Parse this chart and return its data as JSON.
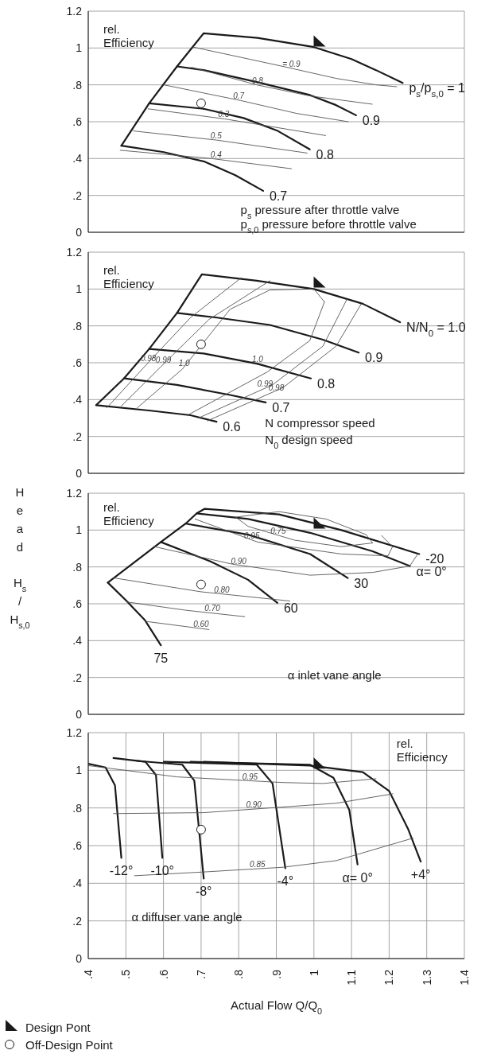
{
  "chart_data": [
    {
      "type": "line",
      "xlim": [
        0.4,
        1.4
      ],
      "ylim": [
        0,
        1.2
      ],
      "xticks": [
        0.4,
        0.5,
        0.6,
        0.7,
        0.8,
        0.9,
        1,
        1.1,
        1.2,
        1.3,
        1.4
      ],
      "yticks": [
        0,
        {
          "value": 0.2,
          "label": ".2"
        },
        {
          "value": 0.4,
          "label": ".4"
        },
        {
          "value": 0.6,
          "label": ".6"
        },
        {
          "value": 0.8,
          "label": ".8"
        },
        1,
        1.2
      ],
      "tick_labels": "y",
      "grid": true,
      "series": [
        {
          "name": "p$_{s}$/p$_{s,0}$ = 1",
          "color": "#1a1a1a",
          "x": [
            0.488,
            0.562,
            0.636,
            0.707,
            0.85,
            1.0,
            1.1,
            1.165,
            1.236
          ],
          "values": [
            0.47,
            0.7,
            0.9,
            1.08,
            1.055,
            1.005,
            0.94,
            0.88,
            0.81
          ]
        },
        {
          "name": "0.9",
          "color": "#1a1a1a",
          "x": [
            0.636,
            0.707,
            0.848,
            0.989,
            1.059,
            1.112
          ],
          "values": [
            0.9,
            0.88,
            0.815,
            0.745,
            0.69,
            0.635
          ]
        },
        {
          "name": "0.8",
          "color": "#1a1a1a",
          "x": [
            0.562,
            0.707,
            0.813,
            0.904,
            0.989
          ],
          "values": [
            0.7,
            0.67,
            0.62,
            0.55,
            0.45
          ]
        },
        {
          "name": "0.7",
          "color": "#1a1a1a",
          "x": [
            0.488,
            0.601,
            0.707,
            0.791,
            0.865
          ],
          "values": [
            0.47,
            0.435,
            0.385,
            0.31,
            0.225
          ]
        },
        {
          "color": "#555555",
          "x": [
            0.679,
            0.918,
            1.059,
            1.165,
            1.22
          ],
          "values": [
            1.005,
            0.9,
            0.835,
            0.8,
            0.79
          ]
        },
        {
          "color": "#555555",
          "x": [
            0.675,
            0.848,
            0.989,
            1.155
          ],
          "values": [
            0.895,
            0.8,
            0.74,
            0.695
          ]
        },
        {
          "color": "#555555",
          "x": [
            0.601,
            0.805,
            0.954,
            1.091
          ],
          "values": [
            0.8,
            0.715,
            0.645,
            0.6
          ]
        },
        {
          "color": "#555555",
          "x": [
            0.559,
            0.763,
            1.031
          ],
          "values": [
            0.67,
            0.615,
            0.525
          ]
        },
        {
          "color": "#555555",
          "x": [
            0.52,
            0.742,
            0.982
          ],
          "values": [
            0.55,
            0.5,
            0.43
          ]
        },
        {
          "color": "#555555",
          "x": [
            0.485,
            0.728,
            0.94
          ],
          "values": [
            0.445,
            0.4,
            0.345
          ]
        },
        {
          "type": "scatter",
          "marker": "triangle",
          "color": "#1a1a1a",
          "x": [
            1.01
          ],
          "values": [
            1.03
          ]
        },
        {
          "type": "scatter",
          "marker": "circle",
          "color": "#1a1a1a",
          "x": [
            0.7
          ],
          "values": [
            0.7
          ]
        }
      ],
      "annotations": [
        "rel.\nEfficiency",
        "p$_{s}$ pressure after throttle valve",
        "p$_{s,0}$ pressure before throttle valve",
        {
          "text": "= 0.9",
          "x": 0.94,
          "y": 0.89
        },
        {
          "text": "0.8",
          "x": 0.85,
          "y": 0.8
        },
        {
          "text": "0.7",
          "x": 0.8,
          "y": 0.717
        },
        {
          "text": "0.3",
          "x": 0.76,
          "y": 0.616
        },
        {
          "text": "0.5",
          "x": 0.74,
          "y": 0.5
        },
        {
          "text": "0.4",
          "x": 0.74,
          "y": 0.398
        }
      ]
    },
    {
      "type": "line",
      "xlim": [
        0.4,
        1.4
      ],
      "ylim": [
        0,
        1.2
      ],
      "xticks": [
        0.4,
        0.5,
        0.6,
        0.7,
        0.8,
        0.9,
        1,
        1.1,
        1.2,
        1.3,
        1.4
      ],
      "yticks": [
        0,
        {
          "value": 0.2,
          "label": ".2"
        },
        {
          "value": 0.4,
          "label": ".4"
        },
        {
          "value": 0.6,
          "label": ".6"
        },
        {
          "value": 0.8,
          "label": ".8"
        },
        1,
        1.2
      ],
      "tick_labels": "y",
      "grid": true,
      "series": [
        {
          "name": "N/N$_{0}$ = 1.0",
          "color": "#1a1a1a",
          "x": [
            0.421,
            0.495,
            0.562,
            0.636,
            0.702,
            0.848,
            1.0,
            1.13,
            1.229
          ],
          "values": [
            0.37,
            0.515,
            0.675,
            0.87,
            1.08,
            1.045,
            1.0,
            0.92,
            0.82
          ]
        },
        {
          "name": "0.9",
          "color": "#1a1a1a",
          "x": [
            0.636,
            0.742,
            0.883,
            1.024,
            1.119
          ],
          "values": [
            0.87,
            0.845,
            0.805,
            0.725,
            0.655
          ]
        },
        {
          "name": "0.8",
          "color": "#1a1a1a",
          "x": [
            0.562,
            0.707,
            0.848,
            0.992
          ],
          "values": [
            0.675,
            0.65,
            0.595,
            0.515
          ]
        },
        {
          "name": "0.7",
          "color": "#1a1a1a",
          "x": [
            0.495,
            0.636,
            0.777,
            0.872
          ],
          "values": [
            0.515,
            0.48,
            0.425,
            0.385
          ]
        },
        {
          "name": "0.6",
          "color": "#1a1a1a",
          "x": [
            0.421,
            0.566,
            0.672,
            0.741
          ],
          "values": [
            0.37,
            0.34,
            0.315,
            0.28
          ]
        },
        {
          "color": "#555555",
          "x": [
            0.449,
            0.566,
            0.672,
            0.806
          ],
          "values": [
            0.355,
            0.615,
            0.845,
            1.06
          ]
        },
        {
          "color": "#555555",
          "x": [
            0.717,
            0.918,
            1.059,
            1.126
          ],
          "values": [
            0.285,
            0.465,
            0.69,
            0.92
          ]
        },
        {
          "color": "#555555",
          "x": [
            0.488,
            0.594,
            0.721,
            0.883
          ],
          "values": [
            0.365,
            0.58,
            0.835,
            1.045
          ]
        },
        {
          "color": "#555555",
          "x": [
            0.693,
            0.89,
            1.024,
            1.088
          ],
          "values": [
            0.3,
            0.48,
            0.69,
            0.945
          ]
        },
        {
          "color": "#555555",
          "x": [
            0.53,
            0.65,
            0.777,
            0.883,
            1.0,
            1.028
          ],
          "values": [
            0.355,
            0.565,
            0.89,
            0.995,
            1.0,
            0.93
          ]
        },
        {
          "color": "#555555",
          "x": [
            0.668,
            0.876,
            0.989,
            1.028
          ],
          "values": [
            0.32,
            0.55,
            0.72,
            0.93
          ]
        },
        {
          "type": "scatter",
          "marker": "triangle",
          "color": "#1a1a1a",
          "x": [
            1.01
          ],
          "values": [
            1.03
          ]
        },
        {
          "type": "scatter",
          "marker": "circle",
          "color": "#1a1a1a",
          "x": [
            0.7
          ],
          "values": [
            0.7
          ]
        }
      ],
      "annotations": [
        "rel.\nEfficiency",
        "N compressor speed",
        "N$_{0}$ design speed",
        {
          "text": "0.98",
          "x": 0.56,
          "y": 0.6
        },
        {
          "text": "0.99",
          "x": 0.6,
          "y": 0.59
        },
        {
          "text": "1.0",
          "x": 0.655,
          "y": 0.575
        },
        {
          "text": "1.0",
          "x": 0.85,
          "y": 0.595
        },
        {
          "text": "0.99",
          "x": 0.87,
          "y": 0.46
        },
        {
          "text": "0.98",
          "x": 0.9,
          "y": 0.44
        }
      ]
    },
    {
      "type": "line",
      "xlim": [
        0.4,
        1.4
      ],
      "ylim": [
        0,
        1.2
      ],
      "xticks": [
        0.4,
        0.5,
        0.6,
        0.7,
        0.8,
        0.9,
        1,
        1.1,
        1.2,
        1.3,
        1.4
      ],
      "yticks": [
        0,
        {
          "value": 0.2,
          "label": ".2"
        },
        {
          "value": 0.4,
          "label": ".4"
        },
        {
          "value": 0.6,
          "label": ".6"
        },
        {
          "value": 0.8,
          "label": ".8"
        },
        1,
        1.2
      ],
      "tick_labels": "y",
      "grid": true,
      "ylabel": "Head H$_{s}$ / H$_{s,0}$",
      "series": [
        {
          "name": "-20",
          "color": "#1a1a1a",
          "x": [
            0.452,
            0.593,
            0.659,
            0.688,
            0.709,
            0.907,
            1.073,
            1.28
          ],
          "values": [
            0.715,
            0.935,
            1.035,
            1.09,
            1.115,
            1.085,
            1.0,
            0.87
          ]
        },
        {
          "name": "α= 0°",
          "color": "#1a1a1a",
          "x": [
            0.688,
            0.825,
            0.99,
            1.156,
            1.255
          ],
          "values": [
            1.09,
            1.06,
            0.985,
            0.885,
            0.805
          ]
        },
        {
          "name": "30",
          "color": "#1a1a1a",
          "x": [
            0.659,
            0.825,
            0.99,
            1.09
          ],
          "values": [
            1.035,
            0.975,
            0.87,
            0.74
          ]
        },
        {
          "name": "60",
          "color": "#1a1a1a",
          "x": [
            0.593,
            0.725,
            0.825,
            0.903
          ],
          "values": [
            0.935,
            0.83,
            0.73,
            0.605
          ]
        },
        {
          "name": "75",
          "color": "#1a1a1a",
          "x": [
            0.452,
            0.502,
            0.551,
            0.593
          ],
          "values": [
            0.715,
            0.615,
            0.51,
            0.375
          ]
        },
        {
          "color": "#555555",
          "x": [
            0.792,
            0.907,
            1.032,
            1.139,
            1.156
          ],
          "values": [
            1.07,
            1.1,
            1.06,
            0.975,
            0.93
          ]
        },
        {
          "color": "#555555",
          "x": [
            0.792,
            0.825,
            0.949,
            1.073,
            1.156
          ],
          "values": [
            1.07,
            1.02,
            0.945,
            0.91,
            0.93
          ]
        },
        {
          "color": "#555555",
          "x": [
            0.684,
            0.85,
            1.073,
            1.197,
            1.209
          ],
          "values": [
            1.06,
            0.935,
            0.87,
            0.86,
            0.91
          ]
        },
        {
          "color": "#555555",
          "x": [
            1.18,
            1.209
          ],
          "values": [
            0.97,
            0.91
          ]
        },
        {
          "color": "#555555",
          "x": [
            0.576,
            0.783,
            0.99,
            1.156,
            1.255,
            1.276
          ],
          "values": [
            0.91,
            0.815,
            0.755,
            0.77,
            0.805,
            0.87
          ]
        },
        {
          "color": "#555555",
          "x": [
            0.469,
            0.7,
            0.936
          ],
          "values": [
            0.74,
            0.665,
            0.615
          ]
        },
        {
          "color": "#555555",
          "x": [
            0.502,
            0.659,
            0.816
          ],
          "values": [
            0.61,
            0.565,
            0.53
          ]
        },
        {
          "color": "#555555",
          "x": [
            0.551,
            0.721
          ],
          "values": [
            0.505,
            0.46
          ]
        },
        {
          "type": "scatter",
          "marker": "triangle",
          "color": "#1a1a1a",
          "x": [
            1.01
          ],
          "values": [
            1.03
          ]
        },
        {
          "type": "scatter",
          "marker": "circle",
          "color": "#1a1a1a",
          "x": [
            0.7
          ],
          "values": [
            0.705
          ]
        }
      ],
      "annotations": [
        "rel.\nEfficiency",
        "α inlet vane angle",
        {
          "text": "0.75",
          "x": 0.905,
          "y": 0.97
        },
        {
          "text": "0.95",
          "x": 0.835,
          "y": 0.946
        },
        {
          "text": "0.90",
          "x": 0.8,
          "y": 0.808
        },
        {
          "text": "0.80",
          "x": 0.755,
          "y": 0.653
        },
        {
          "text": "0.70",
          "x": 0.73,
          "y": 0.552
        },
        {
          "text": "0.60",
          "x": 0.7,
          "y": 0.466
        }
      ]
    },
    {
      "type": "line",
      "xlim": [
        0.4,
        1.4
      ],
      "ylim": [
        0,
        1.2
      ],
      "xticks": [
        {
          "value": 0.4,
          "label": ".4"
        },
        {
          "value": 0.5,
          "label": ".5"
        },
        {
          "value": 0.6,
          "label": ".6"
        },
        {
          "value": 0.7,
          "label": ".7"
        },
        {
          "value": 0.8,
          "label": ".8"
        },
        {
          "value": 0.9,
          "label": ".9"
        },
        1,
        1.1,
        1.2,
        1.3,
        1.4
      ],
      "yticks": [
        0,
        {
          "value": 0.2,
          "label": ".2"
        },
        {
          "value": 0.4,
          "label": ".4"
        },
        {
          "value": 0.6,
          "label": ".6"
        },
        {
          "value": 0.8,
          "label": ".8"
        },
        1,
        1.2
      ],
      "grid": true,
      "xlabel": "Actual Flow Q/Q$_{0}$",
      "legend": "bottom",
      "series": [
        {
          "name": "-12°",
          "color": "#1a1a1a",
          "x": [
            0.4,
            0.446,
            0.471,
            0.488
          ],
          "values": [
            1.035,
            1.015,
            0.92,
            0.535
          ]
        },
        {
          "name": "-10°",
          "color": "#1a1a1a",
          "x": [
            0.467,
            0.552,
            0.58,
            0.597
          ],
          "values": [
            1.065,
            1.045,
            0.975,
            0.535
          ]
        },
        {
          "name": "-8°",
          "color": "#1a1a1a",
          "x": [
            0.53,
            0.65,
            0.682,
            0.707
          ],
          "values": [
            1.05,
            1.03,
            0.945,
            0.425
          ]
        },
        {
          "name": "-4°",
          "color": "#1a1a1a",
          "x": [
            0.601,
            0.848,
            0.89,
            0.924
          ],
          "values": [
            1.045,
            1.03,
            0.93,
            0.48
          ]
        },
        {
          "name": "α= 0°",
          "color": "#1a1a1a",
          "x": [
            0.672,
            0.989,
            1.052,
            1.094,
            1.116
          ],
          "values": [
            1.045,
            1.03,
            0.96,
            0.79,
            0.5
          ]
        },
        {
          "name": "+4°",
          "color": "#1a1a1a",
          "x": [
            0.707,
            0.989,
            1.13,
            1.2,
            1.25,
            1.284
          ],
          "values": [
            1.045,
            1.025,
            0.99,
            0.89,
            0.69,
            0.515
          ]
        },
        {
          "color": "#555555",
          "x": [
            0.4,
            0.636,
            0.918,
            1.024,
            1.165
          ],
          "values": [
            1.025,
            0.965,
            0.935,
            0.93,
            0.955
          ]
        },
        {
          "color": "#555555",
          "x": [
            0.467,
            0.707,
            0.918,
            1.059,
            1.21
          ],
          "values": [
            0.77,
            0.775,
            0.805,
            0.825,
            0.875
          ]
        },
        {
          "color": "#555555",
          "x": [
            0.523,
            0.707,
            0.918,
            1.059,
            1.264
          ],
          "values": [
            0.44,
            0.46,
            0.485,
            0.52,
            0.64
          ]
        },
        {
          "type": "scatter",
          "name": "Design Pont",
          "marker": "triangle",
          "color": "#1a1a1a",
          "x": [
            1.01
          ],
          "values": [
            1.03
          ]
        },
        {
          "type": "scatter",
          "name": "Off-Design Point",
          "marker": "circle",
          "color": "#1a1a1a",
          "x": [
            0.7
          ],
          "values": [
            0.685
          ]
        }
      ],
      "annotations": [
        "rel.\nEfficiency",
        "α diffuser vane angle",
        {
          "text": "0.95",
          "x": 0.83,
          "y": 0.944
        },
        {
          "text": "0.90",
          "x": 0.84,
          "y": 0.794
        },
        {
          "text": "0.85",
          "x": 0.85,
          "y": 0.477
        }
      ]
    }
  ]
}
